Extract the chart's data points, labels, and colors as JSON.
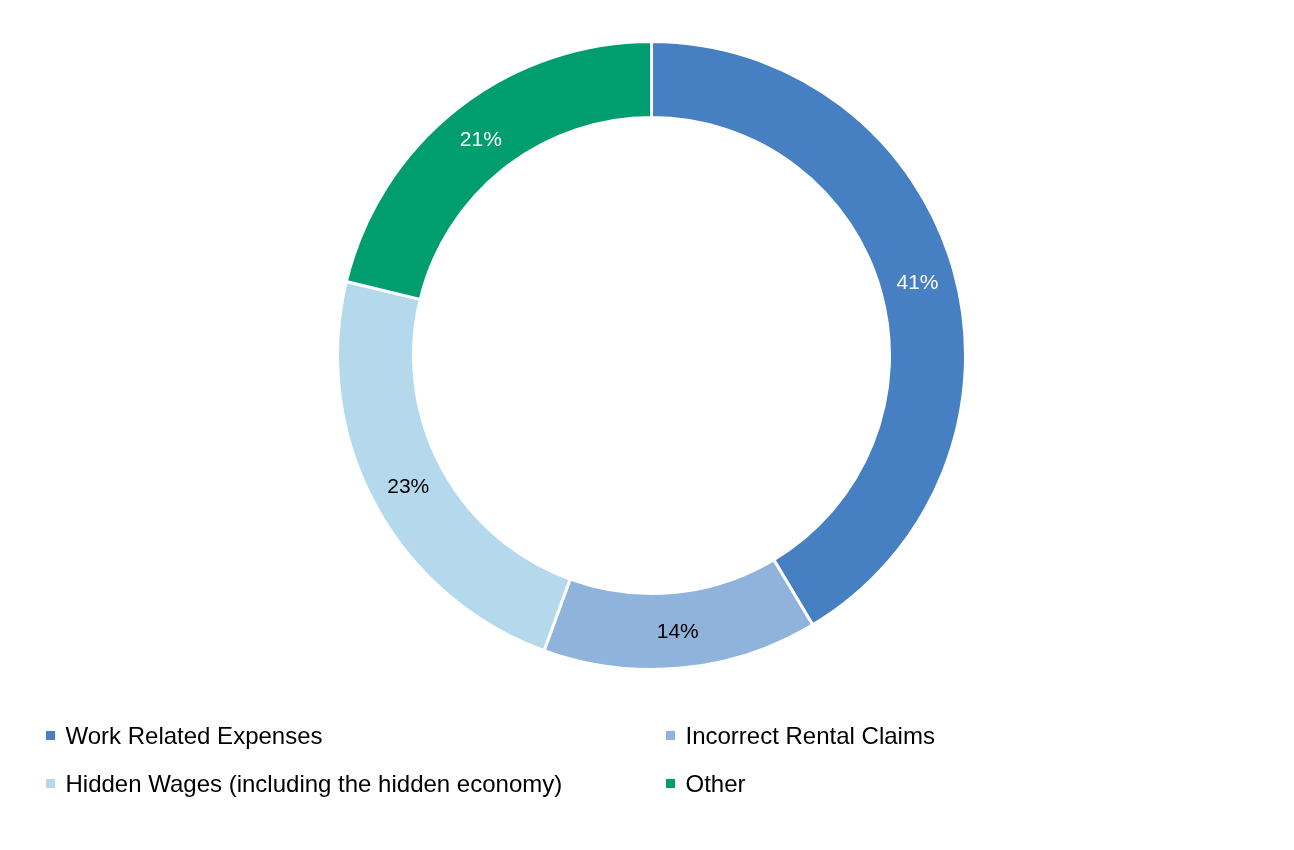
{
  "chart_data": {
    "type": "donut",
    "categories": [
      "Work Related Expenses",
      "Incorrect Rental Claims",
      "Hidden Wages (including the hidden economy)",
      "Other"
    ],
    "values": [
      41,
      14,
      23,
      21
    ],
    "colors": [
      "#467fc2",
      "#8fb3db",
      "#b4d9ec",
      "#009e6f"
    ],
    "value_labels": [
      "41%",
      "14%",
      "23%",
      "21%"
    ],
    "legend": "bottom"
  }
}
